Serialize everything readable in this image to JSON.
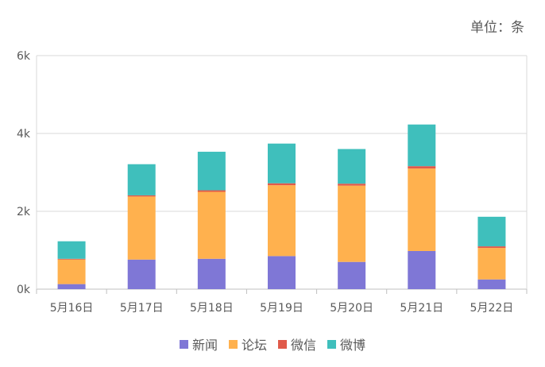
{
  "unit_label": "单位：条",
  "chart_data": {
    "type": "bar",
    "stacked": true,
    "categories": [
      "5月16日",
      "5月17日",
      "5月18日",
      "5月19日",
      "5月20日",
      "5月21日",
      "5月22日"
    ],
    "ylim": [
      0,
      6000
    ],
    "yticks": [
      0,
      2000,
      4000,
      6000
    ],
    "ytick_labels": [
      "0k",
      "2k",
      "4k",
      "6k"
    ],
    "grid": true,
    "legend_position": "bottom",
    "series": [
      {
        "name": "新闻",
        "color": "#7f77d6",
        "values": [
          130,
          760,
          780,
          850,
          700,
          980,
          250
        ]
      },
      {
        "name": "论坛",
        "color": "#ffb14e",
        "values": [
          630,
          1620,
          1720,
          1820,
          1960,
          2120,
          810
        ]
      },
      {
        "name": "微信",
        "color": "#e05a4a",
        "values": [
          20,
          30,
          40,
          50,
          50,
          60,
          40
        ]
      },
      {
        "name": "微博",
        "color": "#3fbfbc",
        "values": [
          450,
          800,
          990,
          1020,
          890,
          1070,
          760
        ]
      }
    ]
  }
}
